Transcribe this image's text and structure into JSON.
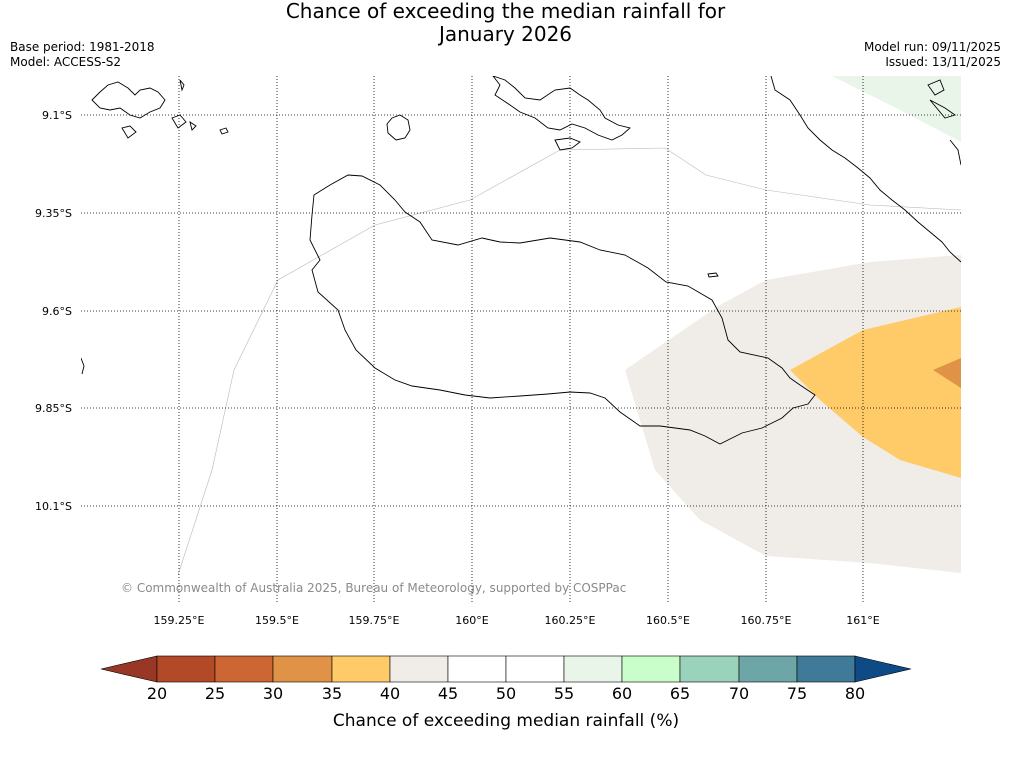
{
  "header": {
    "title_line1": "Chance of exceeding the median rainfall for",
    "title_line2": "January 2026",
    "base_period": "Base period: 1981-2018",
    "model": "Model: ACCESS-S2",
    "model_run": "Model run: 09/11/2025",
    "issued": "Issued: 13/11/2025"
  },
  "map": {
    "lat_labels": [
      "9.1°S",
      "9.35°S",
      "9.6°S",
      "9.85°S",
      "10.1°S"
    ],
    "lon_labels": [
      "159.25°E",
      "159.5°E",
      "159.75°E",
      "160°E",
      "160.25°E",
      "160.5°E",
      "160.75°E",
      "161°E"
    ],
    "copyright": "© Commonwealth of Australia 2025, Bureau of Meteorology, supported by COSPPac",
    "colors": {
      "c40_45": "#f0ece7",
      "c35_40": "#fecb68",
      "c30_35": "#e09347",
      "c55_60": "#e9f5e8"
    }
  },
  "colorbar": {
    "title": "Chance of exceeding median rainfall (%)",
    "ticks": [
      "20",
      "25",
      "30",
      "35",
      "40",
      "45",
      "50",
      "55",
      "60",
      "65",
      "70",
      "75",
      "80"
    ],
    "under_color": "#983726",
    "over_color": "#0e4a85",
    "bin_colors": [
      "#b34a27",
      "#cc6633",
      "#e09347",
      "#fecb68",
      "#f0ece7",
      "#ffffff",
      "#ffffff",
      "#e9f5e8",
      "#c9fdca",
      "#9bd2bc",
      "#6ea5a6",
      "#3f7a98"
    ]
  }
}
